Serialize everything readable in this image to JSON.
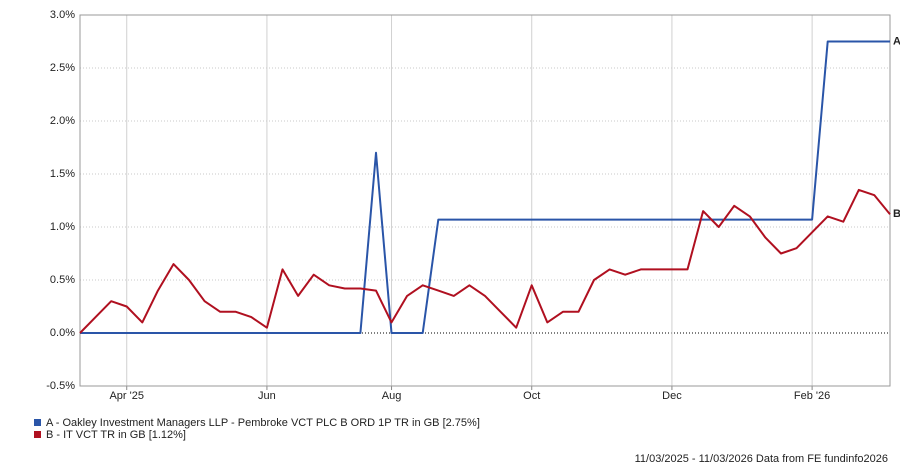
{
  "chart_data": {
    "type": "line",
    "categories": [
      null,
      null,
      null,
      "Apr '25",
      null,
      null,
      null,
      null,
      null,
      null,
      null,
      null,
      "Jun",
      null,
      null,
      null,
      null,
      null,
      null,
      null,
      "Aug",
      null,
      null,
      null,
      null,
      null,
      null,
      null,
      null,
      "Oct",
      null,
      null,
      null,
      null,
      null,
      null,
      null,
      null,
      "Dec",
      null,
      null,
      null,
      null,
      null,
      null,
      null,
      null,
      "Feb '26",
      null,
      null,
      null,
      null,
      null
    ],
    "series": [
      {
        "name": "A - Oakley Investment Managers LLP - Pembroke VCT PLC B ORD 1P TR in GB [2.75%]",
        "label": "A",
        "color": "#2a55a8",
        "values": [
          0,
          0,
          0,
          0,
          0,
          0,
          0,
          0,
          0,
          0,
          0,
          0,
          0,
          0,
          0,
          0,
          0,
          0,
          0,
          1.7,
          0,
          0,
          0,
          1.07,
          1.07,
          1.07,
          1.07,
          1.07,
          1.07,
          1.07,
          1.07,
          1.07,
          1.07,
          1.07,
          1.07,
          1.07,
          1.07,
          1.07,
          1.07,
          1.07,
          1.07,
          1.07,
          1.07,
          1.07,
          1.07,
          1.07,
          1.07,
          1.07,
          2.75,
          2.75,
          2.75,
          2.75,
          2.75
        ]
      },
      {
        "name": "B - IT VCT TR in GB [1.12%]",
        "label": "B",
        "color": "#b01020",
        "values": [
          0,
          0.15,
          0.3,
          0.25,
          0.1,
          0.4,
          0.65,
          0.5,
          0.3,
          0.2,
          0.2,
          0.15,
          0.05,
          0.6,
          0.35,
          0.55,
          0.45,
          0.42,
          0.42,
          0.4,
          0.1,
          0.35,
          0.45,
          0.4,
          0.35,
          0.45,
          0.35,
          0.2,
          0.05,
          0.45,
          0.1,
          0.2,
          0.2,
          0.5,
          0.6,
          0.55,
          0.6,
          0.6,
          0.6,
          0.6,
          1.15,
          1.0,
          1.2,
          1.1,
          0.9,
          0.75,
          0.8,
          0.95,
          1.1,
          1.05,
          1.35,
          1.3,
          1.12
        ]
      }
    ],
    "ylim": [
      -0.5,
      3.0
    ],
    "yticks": [
      {
        "value": -0.5,
        "label": "-0.5%"
      },
      {
        "value": 0,
        "label": "0.0%"
      },
      {
        "value": 0.5,
        "label": "0.5%"
      },
      {
        "value": 1.0,
        "label": "1.0%"
      },
      {
        "value": 1.5,
        "label": "1.5%"
      },
      {
        "value": 2.0,
        "label": "2.0%"
      },
      {
        "value": 2.5,
        "label": "2.5%"
      },
      {
        "value": 3.0,
        "label": "3.0%"
      }
    ],
    "grid": true,
    "footer": "11/03/2025 - 11/03/2026 Data from FE fundinfo2026"
  }
}
